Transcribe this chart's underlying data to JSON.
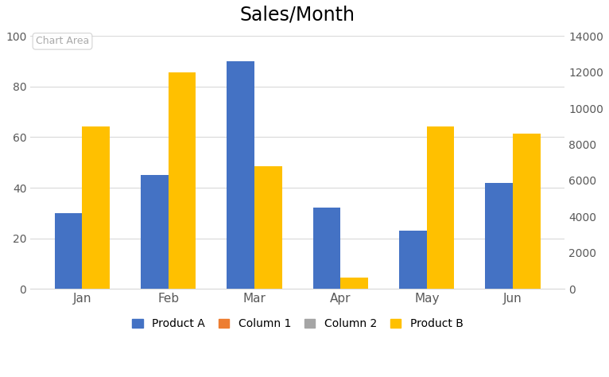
{
  "title": "Sales/Month",
  "categories": [
    "Jan",
    "Feb",
    "Mar",
    "Apr",
    "May",
    "Jun"
  ],
  "product_a": [
    30,
    45,
    90,
    32,
    23,
    42
  ],
  "product_b": [
    9000,
    12000,
    6800,
    600,
    9000,
    8600
  ],
  "color_a": "#4472C4",
  "color_b": "#FFC000",
  "color_col1": "#ED7D31",
  "color_col2": "#A5A5A5",
  "ylim_left": [
    0,
    100
  ],
  "ylim_right": [
    0,
    14000
  ],
  "yticks_left": [
    0,
    20,
    40,
    60,
    80,
    100
  ],
  "yticks_right": [
    0,
    2000,
    4000,
    6000,
    8000,
    10000,
    12000,
    14000
  ],
  "title_fontsize": 17,
  "legend_labels": [
    "Product A",
    "Column 1",
    "Column 2",
    "Product B"
  ],
  "chart_area_label": "Chart Area",
  "background_color": "#FFFFFF",
  "plot_bg_color": "#FFFFFF",
  "grid_color": "#D9D9D9",
  "bar_width": 0.32
}
